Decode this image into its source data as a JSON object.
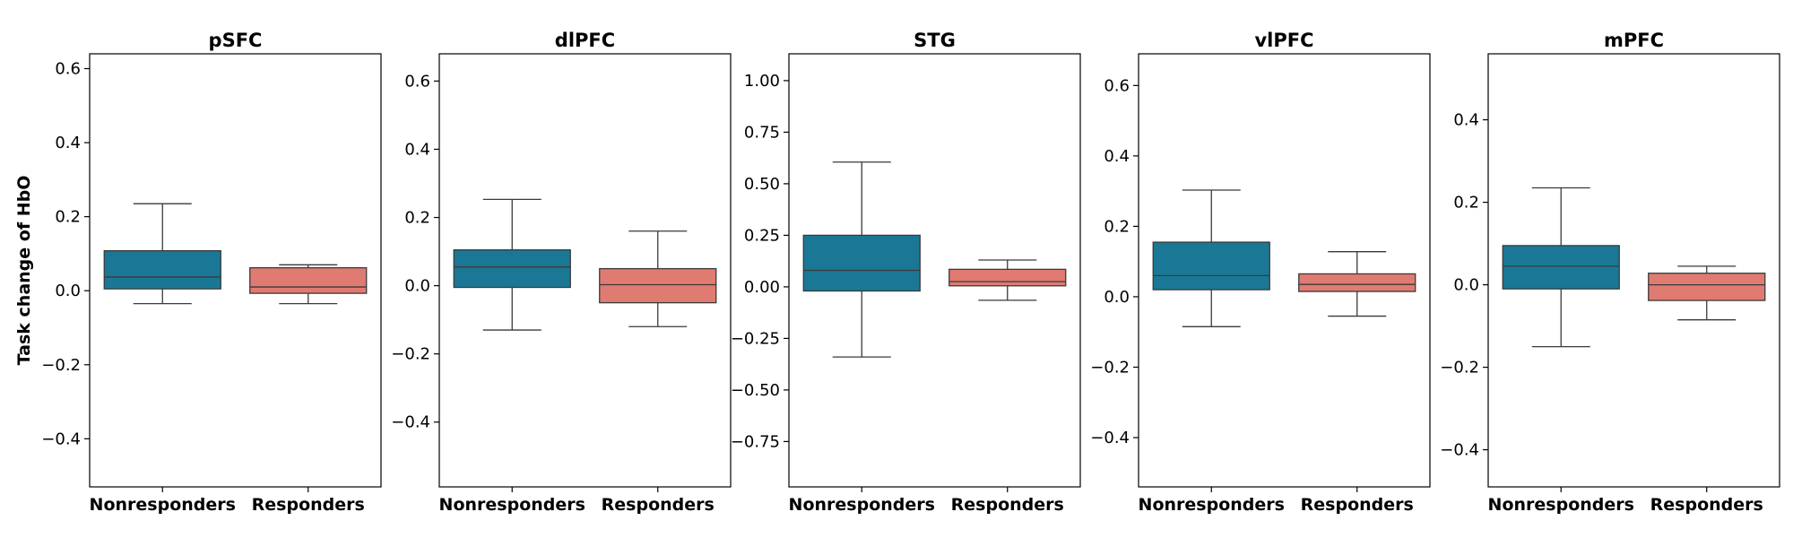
{
  "chart_data": [
    {
      "type": "box",
      "title": "pSFC",
      "ylabel": "Task change of HbO",
      "categories": [
        "Nonresponders",
        "Responders"
      ],
      "ylim": [
        -0.53,
        0.64
      ],
      "yticks": [
        -0.4,
        -0.2,
        0.0,
        0.2,
        0.4,
        0.6
      ],
      "ytick_labels": [
        "−0.4",
        "−0.2",
        "0.0",
        "0.2",
        "0.4",
        "0.6"
      ],
      "boxes": [
        {
          "category": "Nonresponders",
          "whisker_low": -0.035,
          "q1": 0.005,
          "median": 0.037,
          "q3": 0.108,
          "whisker_high": 0.235
        },
        {
          "category": "Responders",
          "whisker_low": -0.035,
          "q1": -0.007,
          "median": 0.01,
          "q3": 0.062,
          "whisker_high": 0.07
        }
      ]
    },
    {
      "type": "box",
      "title": "dlPFC",
      "ylabel": "",
      "categories": [
        "Nonresponders",
        "Responders"
      ],
      "ylim": [
        -0.59,
        0.68
      ],
      "yticks": [
        -0.4,
        -0.2,
        0.0,
        0.2,
        0.4,
        0.6
      ],
      "ytick_labels": [
        "−0.4",
        "−0.2",
        "0.0",
        "0.2",
        "0.4",
        "0.6"
      ],
      "boxes": [
        {
          "category": "Nonresponders",
          "whisker_low": -0.13,
          "q1": -0.005,
          "median": 0.055,
          "q3": 0.105,
          "whisker_high": 0.253
        },
        {
          "category": "Responders",
          "whisker_low": -0.12,
          "q1": -0.05,
          "median": 0.003,
          "q3": 0.05,
          "whisker_high": 0.16
        }
      ]
    },
    {
      "type": "box",
      "title": "STG",
      "ylabel": "",
      "categories": [
        "Nonresponders",
        "Responders"
      ],
      "ylim": [
        -0.97,
        1.13
      ],
      "yticks": [
        -0.75,
        -0.5,
        -0.25,
        0.0,
        0.25,
        0.5,
        0.75,
        1.0
      ],
      "ytick_labels": [
        "−0.75",
        "−0.50",
        "−0.25",
        "0.00",
        "0.25",
        "0.50",
        "0.75",
        "1.00"
      ],
      "boxes": [
        {
          "category": "Nonresponders",
          "whisker_low": -0.34,
          "q1": -0.02,
          "median": 0.08,
          "q3": 0.25,
          "whisker_high": 0.605
        },
        {
          "category": "Responders",
          "whisker_low": -0.065,
          "q1": 0.005,
          "median": 0.025,
          "q3": 0.085,
          "whisker_high": 0.13
        }
      ]
    },
    {
      "type": "box",
      "title": "vlPFC",
      "ylabel": "",
      "categories": [
        "Nonresponders",
        "Responders"
      ],
      "ylim": [
        -0.54,
        0.69
      ],
      "yticks": [
        -0.4,
        -0.2,
        0.0,
        0.2,
        0.4,
        0.6
      ],
      "ytick_labels": [
        "−0.4",
        "−0.2",
        "0.0",
        "0.2",
        "0.4",
        "0.6"
      ],
      "boxes": [
        {
          "category": "Nonresponders",
          "whisker_low": -0.085,
          "q1": 0.02,
          "median": 0.06,
          "q3": 0.155,
          "whisker_high": 0.303
        },
        {
          "category": "Responders",
          "whisker_low": -0.055,
          "q1": 0.015,
          "median": 0.035,
          "q3": 0.065,
          "whisker_high": 0.128
        }
      ]
    },
    {
      "type": "box",
      "title": "mPFC",
      "ylabel": "",
      "categories": [
        "Nonresponders",
        "Responders"
      ],
      "ylim": [
        -0.49,
        0.56
      ],
      "yticks": [
        -0.4,
        -0.2,
        0.0,
        0.2,
        0.4
      ],
      "ytick_labels": [
        "−0.4",
        "−0.2",
        "0.0",
        "0.2",
        "0.4"
      ],
      "boxes": [
        {
          "category": "Nonresponders",
          "whisker_low": -0.15,
          "q1": -0.01,
          "median": 0.045,
          "q3": 0.095,
          "whisker_high": 0.235
        },
        {
          "category": "Responders",
          "whisker_low": -0.085,
          "q1": -0.038,
          "median": 0.0,
          "q3": 0.028,
          "whisker_high": 0.045
        }
      ]
    }
  ],
  "colors": {
    "Nonresponders": "#1a7896",
    "Responders": "#e07b72",
    "line": "#3a3a3a",
    "axes": "#000000"
  }
}
